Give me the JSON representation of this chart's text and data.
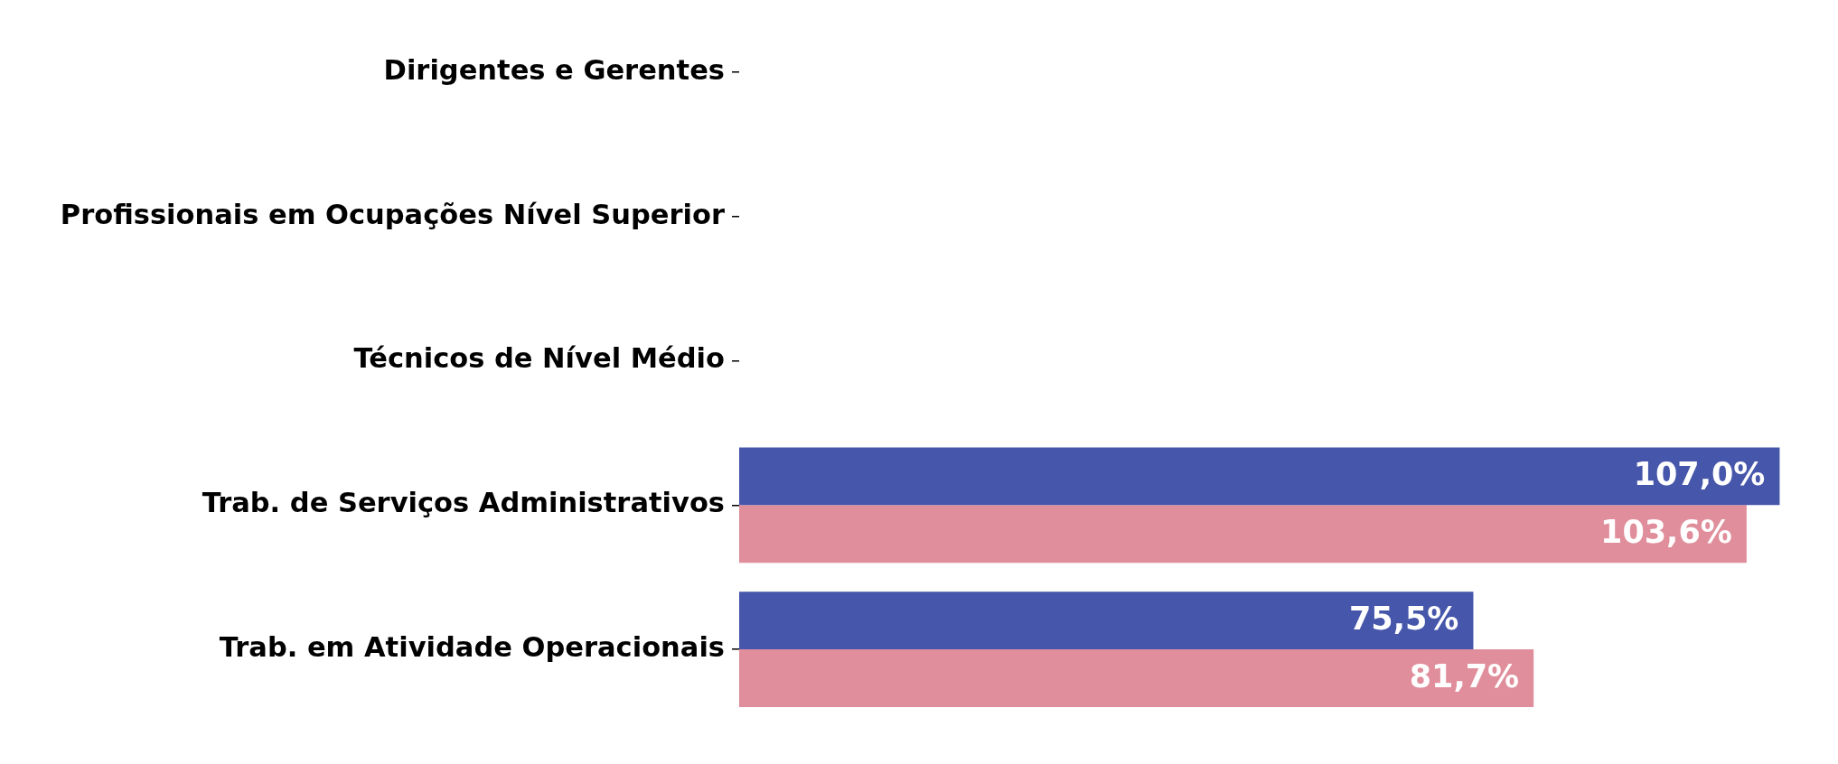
{
  "chart_data": {
    "type": "bar",
    "orientation": "horizontal",
    "categories": [
      "Dirigentes e Gerentes",
      "Profissionais em Ocupações Nível Superior",
      "Técnicos de Nível Médio",
      "Trab. de Serviços Administrativos",
      "Trab. em Atividade Operacionais"
    ],
    "series": [
      {
        "color": "#4656aa",
        "values": [
          null,
          null,
          null,
          107.0,
          75.5
        ],
        "value_labels": [
          null,
          null,
          null,
          "107,0%",
          "75,5%"
        ]
      },
      {
        "color": "#e08e9b",
        "values": [
          null,
          null,
          null,
          103.6,
          81.7
        ],
        "value_labels": [
          null,
          null,
          null,
          "103,6%",
          "81,7%"
        ]
      }
    ],
    "grid": false,
    "legend": false,
    "tick_labels": "y"
  }
}
